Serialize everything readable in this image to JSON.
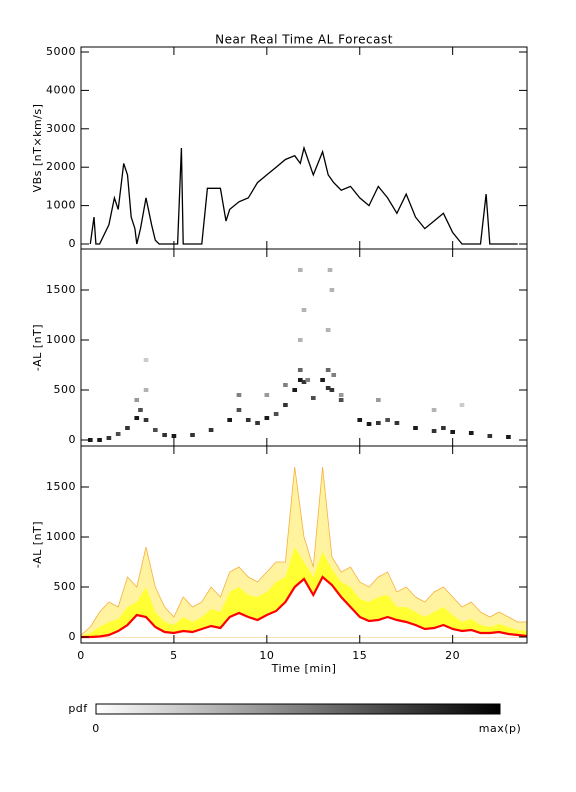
{
  "chart_data": [
    {
      "type": "line",
      "title": "Near Real Time AL Forecast",
      "ylabel": "VBs [nT×km/s]",
      "color": "#000000",
      "xlim": [
        0,
        24
      ],
      "xticks": [
        0,
        5,
        10,
        15,
        20
      ],
      "ylim": [
        -130,
        5130
      ],
      "yticks": [
        0,
        1000,
        2000,
        3000,
        4000,
        5000
      ],
      "x": [
        0.5,
        0.7,
        0.8,
        1.0,
        1.5,
        1.8,
        2.0,
        2.3,
        2.5,
        2.7,
        2.9,
        3.0,
        3.2,
        3.5,
        3.8,
        4.0,
        4.2,
        4.5,
        5.0,
        5.2,
        5.4,
        5.5,
        5.7,
        6.0,
        6.5,
        6.8,
        7.0,
        7.5,
        7.8,
        8.0,
        8.5,
        9.0,
        9.5,
        10.0,
        10.5,
        11.0,
        11.5,
        11.8,
        12.0,
        12.5,
        13.0,
        13.3,
        13.6,
        14.0,
        14.5,
        15.0,
        15.5,
        16.0,
        16.5,
        17.0,
        17.5,
        18.0,
        18.5,
        19.0,
        19.5,
        20.0,
        20.5,
        21.0,
        21.5,
        21.8,
        22.0,
        22.5,
        23.0,
        23.5
      ],
      "values": [
        0,
        700,
        0,
        0,
        500,
        1200,
        900,
        2100,
        1800,
        700,
        400,
        0,
        400,
        1200,
        500,
        100,
        0,
        0,
        0,
        0,
        2500,
        0,
        0,
        0,
        0,
        1450,
        1450,
        1450,
        600,
        900,
        1100,
        1200,
        1600,
        1800,
        2000,
        2200,
        2300,
        2100,
        2500,
        1800,
        2400,
        1800,
        1600,
        1400,
        1500,
        1200,
        1000,
        1500,
        1200,
        800,
        1300,
        700,
        400,
        600,
        800,
        300,
        0,
        0,
        0,
        1300,
        0,
        0,
        0,
        0
      ]
    },
    {
      "type": "heatmap",
      "ylabel": "-AL [nT]",
      "xlim": [
        0,
        24
      ],
      "xticks": [
        0,
        5,
        10,
        15,
        20
      ],
      "ylim": [
        -60,
        1910
      ],
      "yticks": [
        0,
        500,
        1000,
        1500
      ],
      "cells": {
        "x": [
          0.5,
          1,
          1.5,
          2,
          2.5,
          3,
          3.2,
          3.5,
          4,
          4.5,
          5,
          6,
          7,
          8,
          8.5,
          9,
          9.5,
          10,
          10.5,
          11,
          11.5,
          11.8,
          12,
          12.5,
          13,
          13.3,
          13.5,
          14,
          15,
          15.5,
          16,
          16.5,
          17,
          18,
          19,
          19.5,
          20,
          21,
          22,
          23,
          3,
          3.5,
          8.5,
          10,
          11,
          11.8,
          12.2,
          13.3,
          13.6,
          14,
          16,
          19,
          11.8,
          12,
          13.3,
          13.5,
          11.8,
          13.4,
          3.5,
          20.5
        ],
        "y": [
          0,
          0,
          20,
          60,
          120,
          220,
          300,
          200,
          100,
          50,
          40,
          50,
          100,
          200,
          300,
          200,
          170,
          220,
          260,
          350,
          500,
          600,
          580,
          420,
          600,
          520,
          500,
          400,
          200,
          160,
          170,
          200,
          170,
          120,
          90,
          120,
          80,
          70,
          40,
          30,
          400,
          500,
          450,
          450,
          550,
          700,
          600,
          700,
          650,
          450,
          400,
          300,
          1000,
          1300,
          1100,
          1500,
          1700,
          1700,
          800,
          350
        ],
        "p": [
          0.9,
          0.9,
          0.8,
          0.7,
          0.8,
          0.9,
          0.7,
          0.8,
          0.7,
          0.8,
          0.9,
          0.8,
          0.8,
          0.9,
          0.7,
          0.8,
          0.8,
          0.9,
          0.7,
          0.8,
          0.9,
          0.9,
          0.8,
          0.7,
          0.9,
          0.8,
          0.8,
          0.7,
          0.9,
          0.9,
          0.8,
          0.7,
          0.8,
          0.9,
          0.8,
          0.8,
          0.9,
          0.9,
          0.8,
          0.9,
          0.4,
          0.3,
          0.5,
          0.4,
          0.5,
          0.6,
          0.5,
          0.6,
          0.5,
          0.4,
          0.4,
          0.3,
          0.3,
          0.3,
          0.3,
          0.3,
          0.3,
          0.3,
          0.2,
          0.2
        ]
      }
    },
    {
      "type": "area",
      "ylabel": "-AL [nT]",
      "xlabel": "Time [min]",
      "xlim": [
        0,
        24
      ],
      "xticks": [
        0,
        5,
        10,
        15,
        20
      ],
      "ylim": [
        -60,
        1910
      ],
      "yticks": [
        0,
        500,
        1000,
        1500
      ],
      "x": [
        0,
        0.5,
        1,
        1.5,
        2,
        2.5,
        3,
        3.5,
        4,
        4.5,
        5,
        5.5,
        6,
        6.5,
        7,
        7.5,
        8,
        8.5,
        9,
        9.5,
        10,
        10.5,
        11,
        11.5,
        12,
        12.5,
        13,
        13.5,
        14,
        14.5,
        15,
        15.5,
        16,
        16.5,
        17,
        17.5,
        18,
        18.5,
        19,
        19.5,
        20,
        20.5,
        21,
        21.5,
        22,
        22.5,
        23,
        23.5,
        24
      ],
      "series": [
        {
          "color": "#fff3a0",
          "values": [
            20,
            100,
            250,
            350,
            300,
            600,
            500,
            900,
            500,
            300,
            200,
            400,
            300,
            350,
            500,
            400,
            650,
            700,
            600,
            550,
            650,
            750,
            750,
            1700,
            1000,
            700,
            1700,
            800,
            650,
            700,
            550,
            500,
            600,
            650,
            450,
            500,
            400,
            350,
            450,
            500,
            400,
            300,
            350,
            250,
            200,
            250,
            200,
            150,
            150
          ]
        },
        {
          "color": "#ffff33",
          "values": [
            10,
            40,
            100,
            150,
            180,
            300,
            350,
            500,
            250,
            150,
            120,
            200,
            150,
            200,
            280,
            250,
            450,
            500,
            420,
            400,
            450,
            550,
            600,
            900,
            750,
            600,
            850,
            680,
            550,
            500,
            380,
            350,
            400,
            420,
            300,
            300,
            250,
            200,
            250,
            300,
            220,
            150,
            180,
            120,
            100,
            130,
            100,
            70,
            60
          ]
        },
        {
          "color": "#ff0000",
          "values": [
            0,
            0,
            5,
            20,
            60,
            120,
            220,
            200,
            100,
            50,
            40,
            60,
            50,
            80,
            110,
            90,
            200,
            240,
            200,
            170,
            220,
            260,
            350,
            500,
            580,
            420,
            600,
            520,
            400,
            300,
            200,
            160,
            170,
            200,
            170,
            150,
            120,
            80,
            90,
            120,
            80,
            60,
            70,
            40,
            40,
            50,
            30,
            20,
            10
          ]
        }
      ]
    }
  ],
  "colorbar": {
    "label": "pdf",
    "min_label": "0",
    "max_label": "max(p)"
  }
}
